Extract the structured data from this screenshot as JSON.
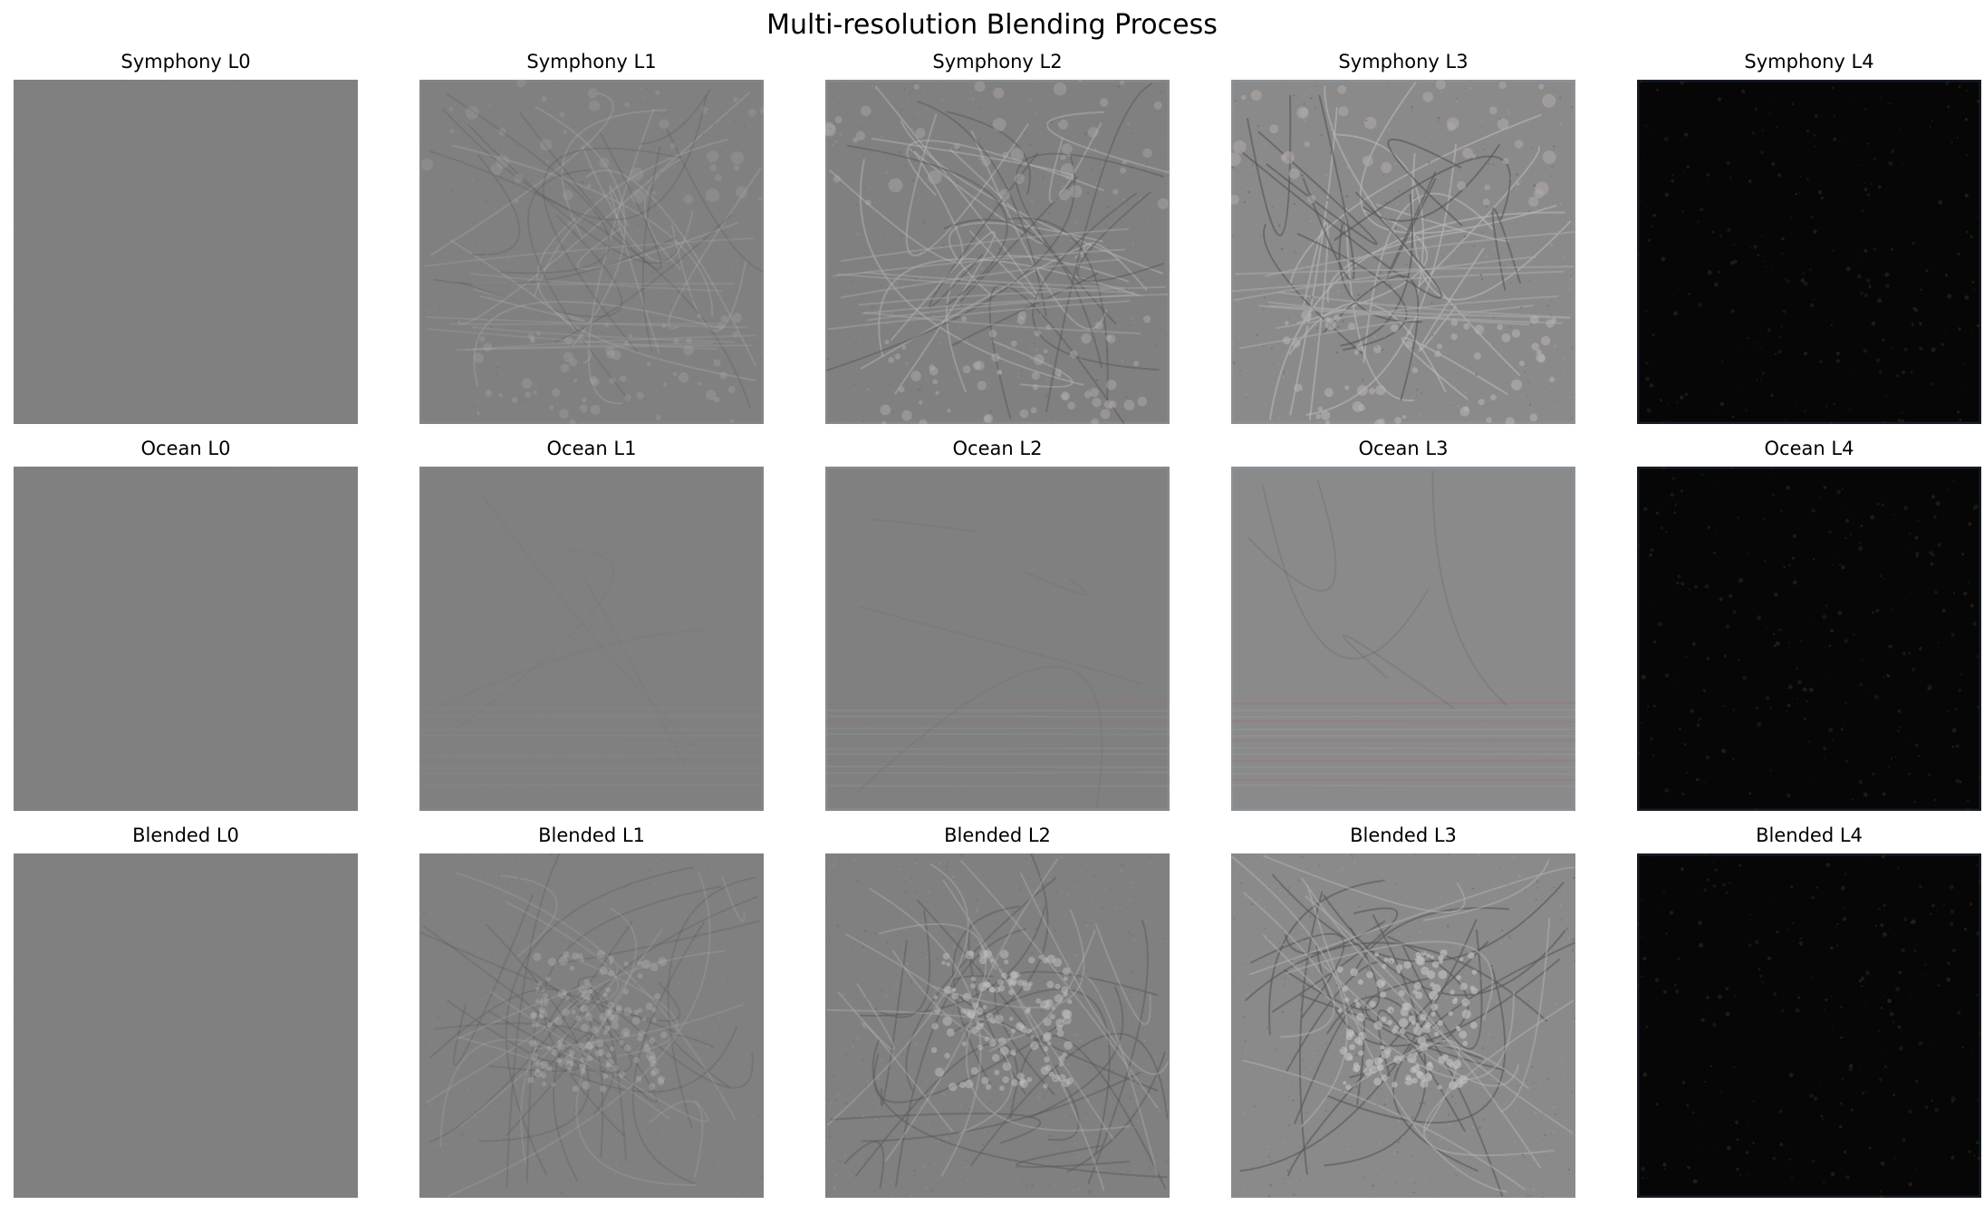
{
  "figure": {
    "title": "Multi-resolution Blending Process"
  },
  "rows": [
    {
      "panels": [
        {
          "title": "Symphony L0",
          "tone": "flat"
        },
        {
          "title": "Symphony L1",
          "tone": "detail-light"
        },
        {
          "title": "Symphony L2",
          "tone": "detail-medium"
        },
        {
          "title": "Symphony L3",
          "tone": "detail-strong"
        },
        {
          "title": "Symphony L4",
          "tone": "dark-residual"
        }
      ]
    },
    {
      "panels": [
        {
          "title": "Ocean L0",
          "tone": "flat"
        },
        {
          "title": "Ocean L1",
          "tone": "faint-horizon"
        },
        {
          "title": "Ocean L2",
          "tone": "faint-horizon-medium"
        },
        {
          "title": "Ocean L3",
          "tone": "faint-horizon-strong"
        },
        {
          "title": "Ocean L4",
          "tone": "dark-residual"
        }
      ]
    },
    {
      "panels": [
        {
          "title": "Blended L0",
          "tone": "flat"
        },
        {
          "title": "Blended L1",
          "tone": "texture-light"
        },
        {
          "title": "Blended L2",
          "tone": "texture-medium"
        },
        {
          "title": "Blended L3",
          "tone": "texture-strong"
        },
        {
          "title": "Blended L4",
          "tone": "dark-residual"
        }
      ]
    }
  ],
  "colors": {
    "neutral_gray": "#808080",
    "light_gray": "#8a8a8a",
    "dark_residual": "#050605",
    "edge_blue_gray": "#8c96a0"
  }
}
